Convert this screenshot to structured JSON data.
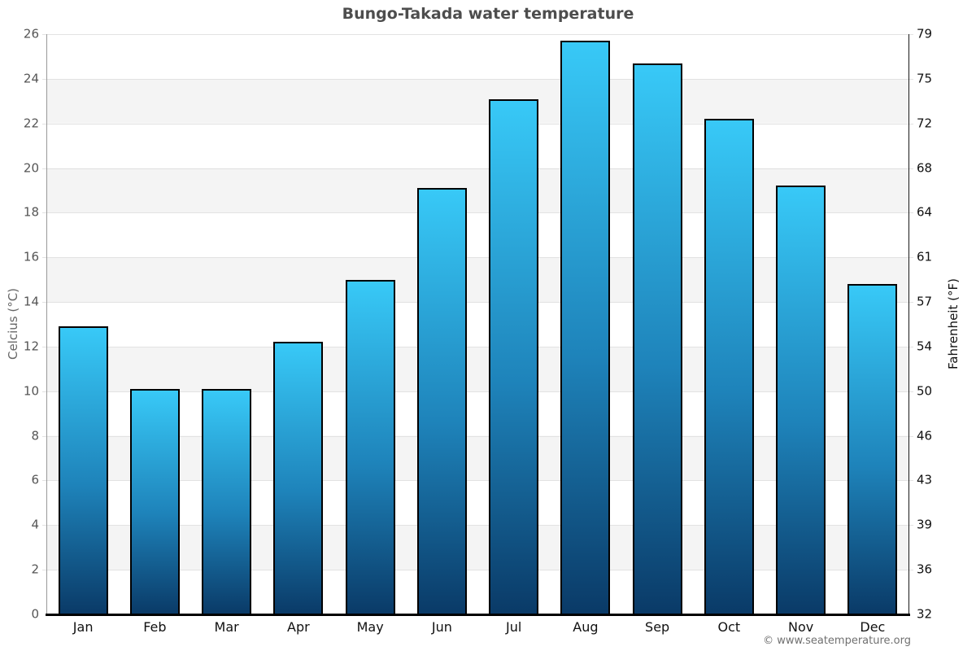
{
  "title": "Bungo-Takada water temperature",
  "footer": "© www.seatemperature.org",
  "chart_data": {
    "type": "bar",
    "title": "Bungo-Takada water temperature",
    "categories": [
      "Jan",
      "Feb",
      "Mar",
      "Apr",
      "May",
      "Jun",
      "Jul",
      "Aug",
      "Sep",
      "Oct",
      "Nov",
      "Dec"
    ],
    "values": [
      12.9,
      10.1,
      10.1,
      12.2,
      15.0,
      19.1,
      23.1,
      25.7,
      24.7,
      22.2,
      19.2,
      14.8
    ],
    "xlabel": "",
    "ylabel_left": "Celcius (°C)",
    "ylabel_right": "Fahrenheit (°F)",
    "ylim": [
      0,
      26
    ],
    "yticks_celsius": [
      0,
      2,
      4,
      6,
      8,
      10,
      12,
      14,
      16,
      18,
      20,
      22,
      24,
      26
    ],
    "yticks_fahrenheit": [
      32,
      36,
      39,
      43,
      46,
      50,
      54,
      57,
      61,
      64,
      68,
      72,
      75,
      79
    ],
    "grid": "alternating horizontal bands, gridline every 2°C",
    "legend": false
  },
  "colors": {
    "bar_gradient_top": "#38c9f7",
    "bar_gradient_mid": "#1e83ba",
    "bar_gradient_bottom": "#0a3a67",
    "bar_border": "#000000",
    "band_gray": "#f4f4f4",
    "band_white": "#ffffff",
    "gridline": "#e2e2e2",
    "axis_left_line": "#999999",
    "axis_right_line": "#1a1a1a",
    "axis_bottom_line": "#000000",
    "title_color": "#4d4d4d",
    "tick_color_left": "#555555",
    "tick_color_right": "#111111",
    "footer_color": "#707070"
  }
}
